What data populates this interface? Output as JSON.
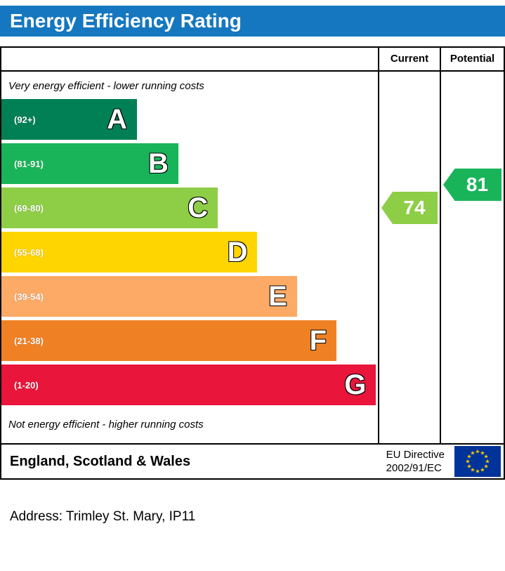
{
  "title": "Energy Efficiency Rating",
  "table": {
    "current_label": "Current",
    "potential_label": "Potential",
    "top_note": "Very energy efficient - lower running costs",
    "bottom_note": "Not energy efficient - higher running costs"
  },
  "footer": {
    "region": "England, Scotland & Wales",
    "directive_line1": "EU Directive",
    "directive_line2": "2002/91/EC",
    "eu_flag": {
      "background": "#003399",
      "star_color": "#ffcc00"
    }
  },
  "address": "Address: Trimley St. Mary, IP11",
  "colors": {
    "banner": "#1577bf",
    "current_pointer": "#8dce46",
    "potential_pointer": "#19b459"
  },
  "chart_data": {
    "type": "bar",
    "title": "Energy Efficiency Rating",
    "categories": [
      "A",
      "B",
      "C",
      "D",
      "E",
      "F",
      "G"
    ],
    "bands": [
      {
        "letter": "A",
        "range": "(92+)",
        "color": "#008054",
        "width_pct": 36
      },
      {
        "letter": "B",
        "range": "(81-91)",
        "color": "#19b459",
        "width_pct": 47
      },
      {
        "letter": "C",
        "range": "(69-80)",
        "color": "#8dce46",
        "width_pct": 57.5
      },
      {
        "letter": "D",
        "range": "(55-68)",
        "color": "#ffd500",
        "width_pct": 68
      },
      {
        "letter": "E",
        "range": "(39-54)",
        "color": "#fcaa65",
        "width_pct": 78.5
      },
      {
        "letter": "F",
        "range": "(21-38)",
        "color": "#ef8023",
        "width_pct": 89
      },
      {
        "letter": "G",
        "range": "(1-20)",
        "color": "#e9153b",
        "width_pct": 99.5
      }
    ],
    "current": {
      "value": 74,
      "band": "C"
    },
    "potential": {
      "value": 81,
      "band": "B"
    }
  }
}
